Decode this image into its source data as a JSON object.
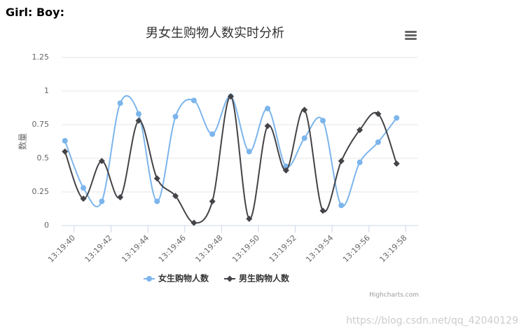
{
  "header": {
    "text": "Girl: Boy:"
  },
  "chart_data": {
    "type": "spline",
    "title": "男女生购物人数实时分析",
    "y_label": "数量",
    "x": [
      39.5,
      40.5,
      41.5,
      42.5,
      43.5,
      44.5,
      45.5,
      46.5,
      47.5,
      48.5,
      49.5,
      50.5,
      51.5,
      52.5,
      53.5,
      54.5,
      55.5,
      56.5,
      57.5
    ],
    "xlim": [
      39.32,
      58.67
    ],
    "xticks": [
      {
        "value": 40,
        "label": "13:19:40"
      },
      {
        "value": 42,
        "label": "13:19:42"
      },
      {
        "value": 44,
        "label": "13:19:44"
      },
      {
        "value": 46,
        "label": "13:19:46"
      },
      {
        "value": 48,
        "label": "13:19:48"
      },
      {
        "value": 50,
        "label": "13:19:50"
      },
      {
        "value": 52,
        "label": "13:19:52"
      },
      {
        "value": 54,
        "label": "13:19:54"
      },
      {
        "value": 56,
        "label": "13:19:56"
      },
      {
        "value": 58,
        "label": "13:19:58"
      }
    ],
    "ylim": [
      0,
      1.25
    ],
    "yticks": [
      0,
      0.25,
      0.5,
      0.75,
      1,
      1.25
    ],
    "grid": true,
    "series": [
      {
        "name": "女生购物人数",
        "color": "#7cb5ec",
        "marker": "circle",
        "values": [
          0.63,
          0.28,
          0.18,
          0.91,
          0.83,
          0.18,
          0.81,
          0.93,
          0.68,
          0.96,
          0.55,
          0.87,
          0.44,
          0.65,
          0.78,
          0.15,
          0.47,
          0.62,
          0.8
        ]
      },
      {
        "name": "男生购物人数",
        "color": "#434348",
        "marker": "diamond",
        "values": [
          0.55,
          0.2,
          0.48,
          0.21,
          0.78,
          0.35,
          0.22,
          0.02,
          0.18,
          0.96,
          0.05,
          0.74,
          0.41,
          0.86,
          0.11,
          0.48,
          0.71,
          0.83,
          0.46
        ]
      }
    ],
    "credits": "Highcharts.com"
  },
  "watermark": "https://blog.csdn.net/qq_42040129"
}
